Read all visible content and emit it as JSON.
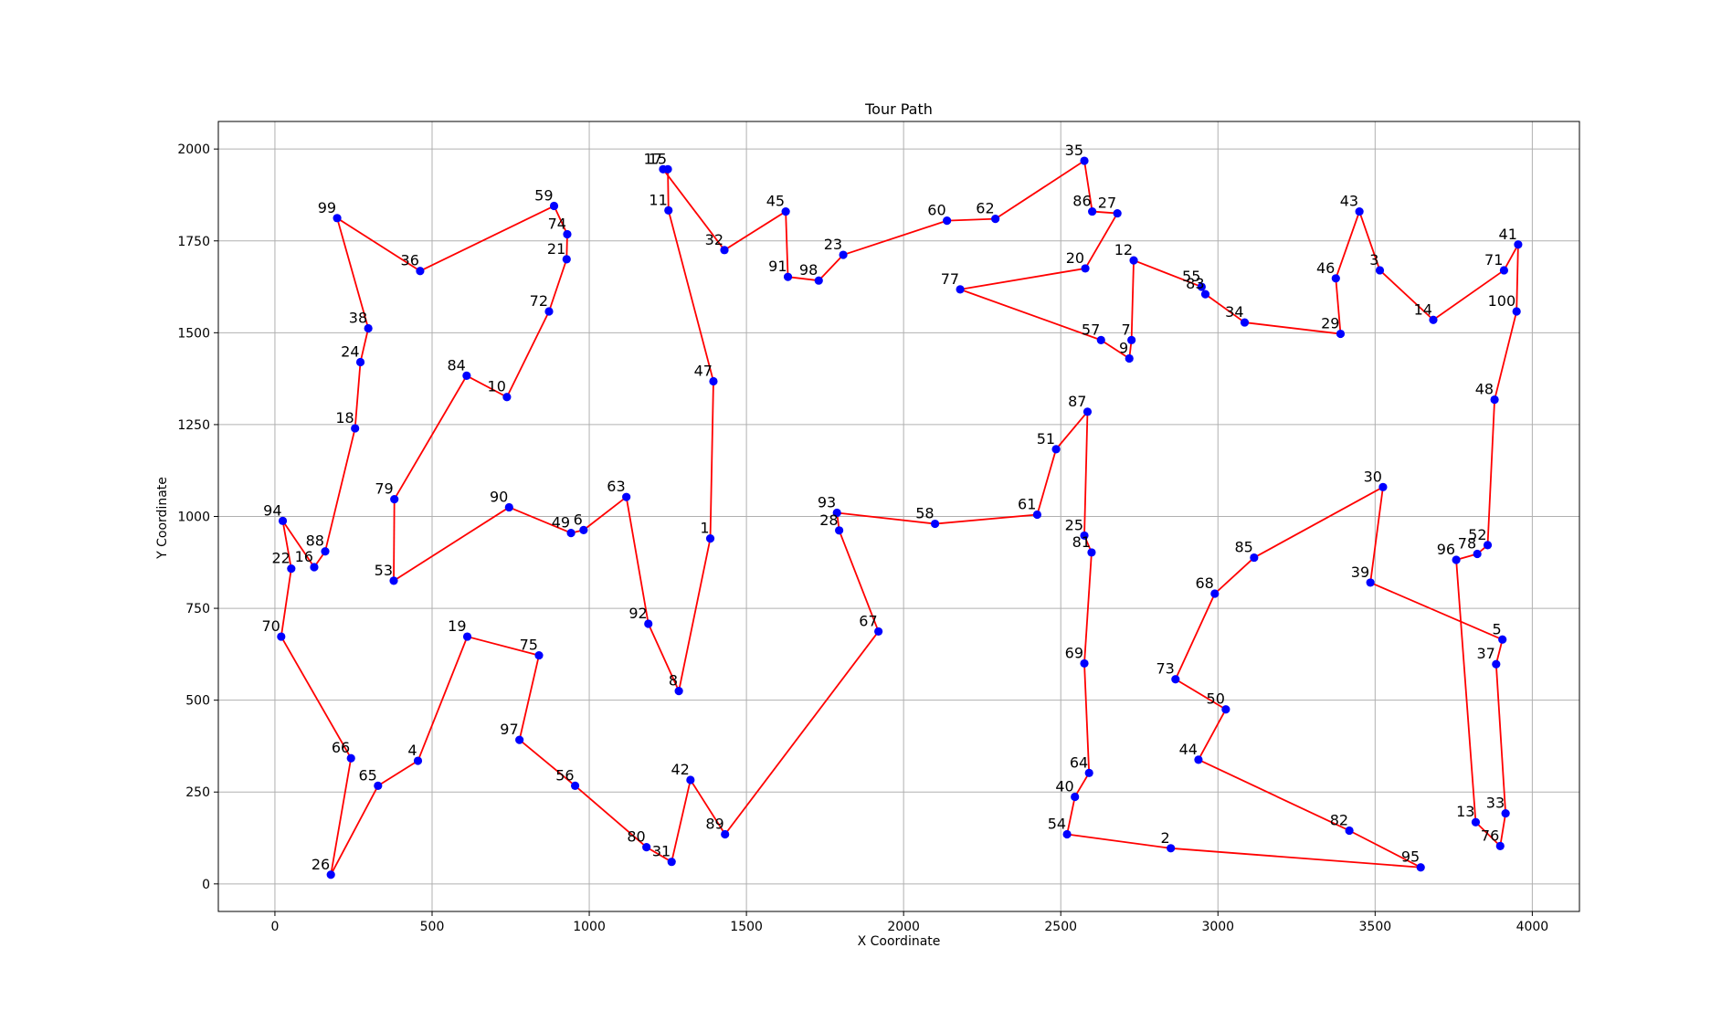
{
  "chart_data": {
    "type": "line",
    "title": "Tour Path",
    "xlabel": "X Coordinate",
    "ylabel": "Y Coordinate",
    "xlim": [
      -180,
      4150
    ],
    "ylim": [
      -75,
      2075
    ],
    "xticks": [
      0,
      500,
      1000,
      1500,
      2000,
      2500,
      3000,
      3500,
      4000
    ],
    "yticks": [
      0,
      250,
      500,
      750,
      1000,
      1250,
      1500,
      1750,
      2000
    ],
    "grid": true,
    "line_color": "#ff0000",
    "marker_color": "#0000ff",
    "tour": [
      99,
      36,
      59,
      74,
      21,
      72,
      10,
      84,
      79,
      53,
      90,
      49,
      6,
      63,
      92,
      8,
      1,
      47,
      11,
      15,
      17,
      32,
      45,
      91,
      98,
      23,
      60,
      62,
      35,
      86,
      27,
      20,
      77,
      57,
      9,
      7,
      12,
      55,
      83,
      34,
      29,
      46,
      43,
      3,
      14,
      71,
      41,
      100,
      48,
      52,
      78,
      96,
      13,
      76,
      33,
      37,
      5,
      39,
      30,
      85,
      68,
      73,
      50,
      44,
      82,
      95,
      2,
      54,
      40,
      64,
      69,
      81,
      25,
      87,
      51,
      61,
      58,
      93,
      28,
      67,
      89,
      42,
      31,
      80,
      56,
      97,
      75,
      19,
      4,
      65,
      26,
      66,
      70,
      22,
      94,
      16,
      88,
      18,
      24,
      38
    ],
    "points": [
      {
        "id": 1,
        "x": 1385,
        "y": 940
      },
      {
        "id": 2,
        "x": 2850,
        "y": 97
      },
      {
        "id": 3,
        "x": 3515,
        "y": 1670
      },
      {
        "id": 4,
        "x": 455,
        "y": 335
      },
      {
        "id": 5,
        "x": 3905,
        "y": 665
      },
      {
        "id": 6,
        "x": 982,
        "y": 963
      },
      {
        "id": 7,
        "x": 2725,
        "y": 1480
      },
      {
        "id": 8,
        "x": 1285,
        "y": 525
      },
      {
        "id": 9,
        "x": 2718,
        "y": 1430
      },
      {
        "id": 10,
        "x": 738,
        "y": 1325
      },
      {
        "id": 11,
        "x": 1252,
        "y": 1833
      },
      {
        "id": 12,
        "x": 2732,
        "y": 1697
      },
      {
        "id": 13,
        "x": 3820,
        "y": 168
      },
      {
        "id": 14,
        "x": 3685,
        "y": 1535
      },
      {
        "id": 15,
        "x": 1250,
        "y": 1945
      },
      {
        "id": 16,
        "x": 125,
        "y": 862
      },
      {
        "id": 17,
        "x": 1235,
        "y": 1945
      },
      {
        "id": 18,
        "x": 255,
        "y": 1240
      },
      {
        "id": 19,
        "x": 612,
        "y": 673
      },
      {
        "id": 20,
        "x": 2578,
        "y": 1675
      },
      {
        "id": 21,
        "x": 928,
        "y": 1700
      },
      {
        "id": 22,
        "x": 52,
        "y": 858
      },
      {
        "id": 23,
        "x": 1808,
        "y": 1712
      },
      {
        "id": 24,
        "x": 272,
        "y": 1420
      },
      {
        "id": 25,
        "x": 2575,
        "y": 948
      },
      {
        "id": 26,
        "x": 178,
        "y": 25
      },
      {
        "id": 27,
        "x": 2680,
        "y": 1825
      },
      {
        "id": 28,
        "x": 1795,
        "y": 962
      },
      {
        "id": 29,
        "x": 3390,
        "y": 1497
      },
      {
        "id": 30,
        "x": 3525,
        "y": 1080
      },
      {
        "id": 31,
        "x": 1262,
        "y": 60
      },
      {
        "id": 32,
        "x": 1430,
        "y": 1725
      },
      {
        "id": 33,
        "x": 3915,
        "y": 192
      },
      {
        "id": 34,
        "x": 3085,
        "y": 1528
      },
      {
        "id": 35,
        "x": 2575,
        "y": 1968
      },
      {
        "id": 36,
        "x": 462,
        "y": 1668
      },
      {
        "id": 37,
        "x": 3885,
        "y": 598
      },
      {
        "id": 38,
        "x": 297,
        "y": 1512
      },
      {
        "id": 39,
        "x": 3485,
        "y": 820
      },
      {
        "id": 40,
        "x": 2545,
        "y": 237
      },
      {
        "id": 41,
        "x": 3955,
        "y": 1740
      },
      {
        "id": 42,
        "x": 1322,
        "y": 283
      },
      {
        "id": 43,
        "x": 3450,
        "y": 1830
      },
      {
        "id": 44,
        "x": 2938,
        "y": 338
      },
      {
        "id": 45,
        "x": 1625,
        "y": 1830
      },
      {
        "id": 46,
        "x": 3375,
        "y": 1648
      },
      {
        "id": 47,
        "x": 1395,
        "y": 1368
      },
      {
        "id": 48,
        "x": 3880,
        "y": 1318
      },
      {
        "id": 49,
        "x": 942,
        "y": 955
      },
      {
        "id": 50,
        "x": 3025,
        "y": 475
      },
      {
        "id": 51,
        "x": 2485,
        "y": 1183
      },
      {
        "id": 52,
        "x": 3858,
        "y": 922
      },
      {
        "id": 53,
        "x": 378,
        "y": 825
      },
      {
        "id": 54,
        "x": 2520,
        "y": 135
      },
      {
        "id": 55,
        "x": 2948,
        "y": 1625
      },
      {
        "id": 56,
        "x": 955,
        "y": 267
      },
      {
        "id": 57,
        "x": 2628,
        "y": 1480
      },
      {
        "id": 58,
        "x": 2100,
        "y": 980
      },
      {
        "id": 59,
        "x": 888,
        "y": 1845
      },
      {
        "id": 60,
        "x": 2138,
        "y": 1805
      },
      {
        "id": 61,
        "x": 2425,
        "y": 1005
      },
      {
        "id": 62,
        "x": 2292,
        "y": 1810
      },
      {
        "id": 63,
        "x": 1118,
        "y": 1053
      },
      {
        "id": 64,
        "x": 2590,
        "y": 302
      },
      {
        "id": 65,
        "x": 328,
        "y": 267
      },
      {
        "id": 66,
        "x": 242,
        "y": 342
      },
      {
        "id": 67,
        "x": 1920,
        "y": 687
      },
      {
        "id": 68,
        "x": 2990,
        "y": 790
      },
      {
        "id": 69,
        "x": 2575,
        "y": 600
      },
      {
        "id": 70,
        "x": 20,
        "y": 673
      },
      {
        "id": 71,
        "x": 3910,
        "y": 1670
      },
      {
        "id": 72,
        "x": 872,
        "y": 1558
      },
      {
        "id": 73,
        "x": 2865,
        "y": 557
      },
      {
        "id": 74,
        "x": 930,
        "y": 1768
      },
      {
        "id": 75,
        "x": 840,
        "y": 622
      },
      {
        "id": 76,
        "x": 3898,
        "y": 103
      },
      {
        "id": 77,
        "x": 2180,
        "y": 1618
      },
      {
        "id": 78,
        "x": 3825,
        "y": 898
      },
      {
        "id": 79,
        "x": 380,
        "y": 1047
      },
      {
        "id": 80,
        "x": 1182,
        "y": 100
      },
      {
        "id": 81,
        "x": 2598,
        "y": 902
      },
      {
        "id": 82,
        "x": 3418,
        "y": 145
      },
      {
        "id": 83,
        "x": 2960,
        "y": 1605
      },
      {
        "id": 84,
        "x": 610,
        "y": 1383
      },
      {
        "id": 85,
        "x": 3115,
        "y": 888
      },
      {
        "id": 86,
        "x": 2600,
        "y": 1830
      },
      {
        "id": 87,
        "x": 2585,
        "y": 1285
      },
      {
        "id": 88,
        "x": 160,
        "y": 905
      },
      {
        "id": 89,
        "x": 1432,
        "y": 135
      },
      {
        "id": 90,
        "x": 745,
        "y": 1025
      },
      {
        "id": 91,
        "x": 1632,
        "y": 1652
      },
      {
        "id": 92,
        "x": 1188,
        "y": 708
      },
      {
        "id": 93,
        "x": 1788,
        "y": 1010
      },
      {
        "id": 94,
        "x": 25,
        "y": 988
      },
      {
        "id": 95,
        "x": 3645,
        "y": 45
      },
      {
        "id": 96,
        "x": 3758,
        "y": 882
      },
      {
        "id": 97,
        "x": 778,
        "y": 392
      },
      {
        "id": 98,
        "x": 1730,
        "y": 1642
      },
      {
        "id": 99,
        "x": 198,
        "y": 1812
      },
      {
        "id": 100,
        "x": 3950,
        "y": 1558
      }
    ]
  }
}
